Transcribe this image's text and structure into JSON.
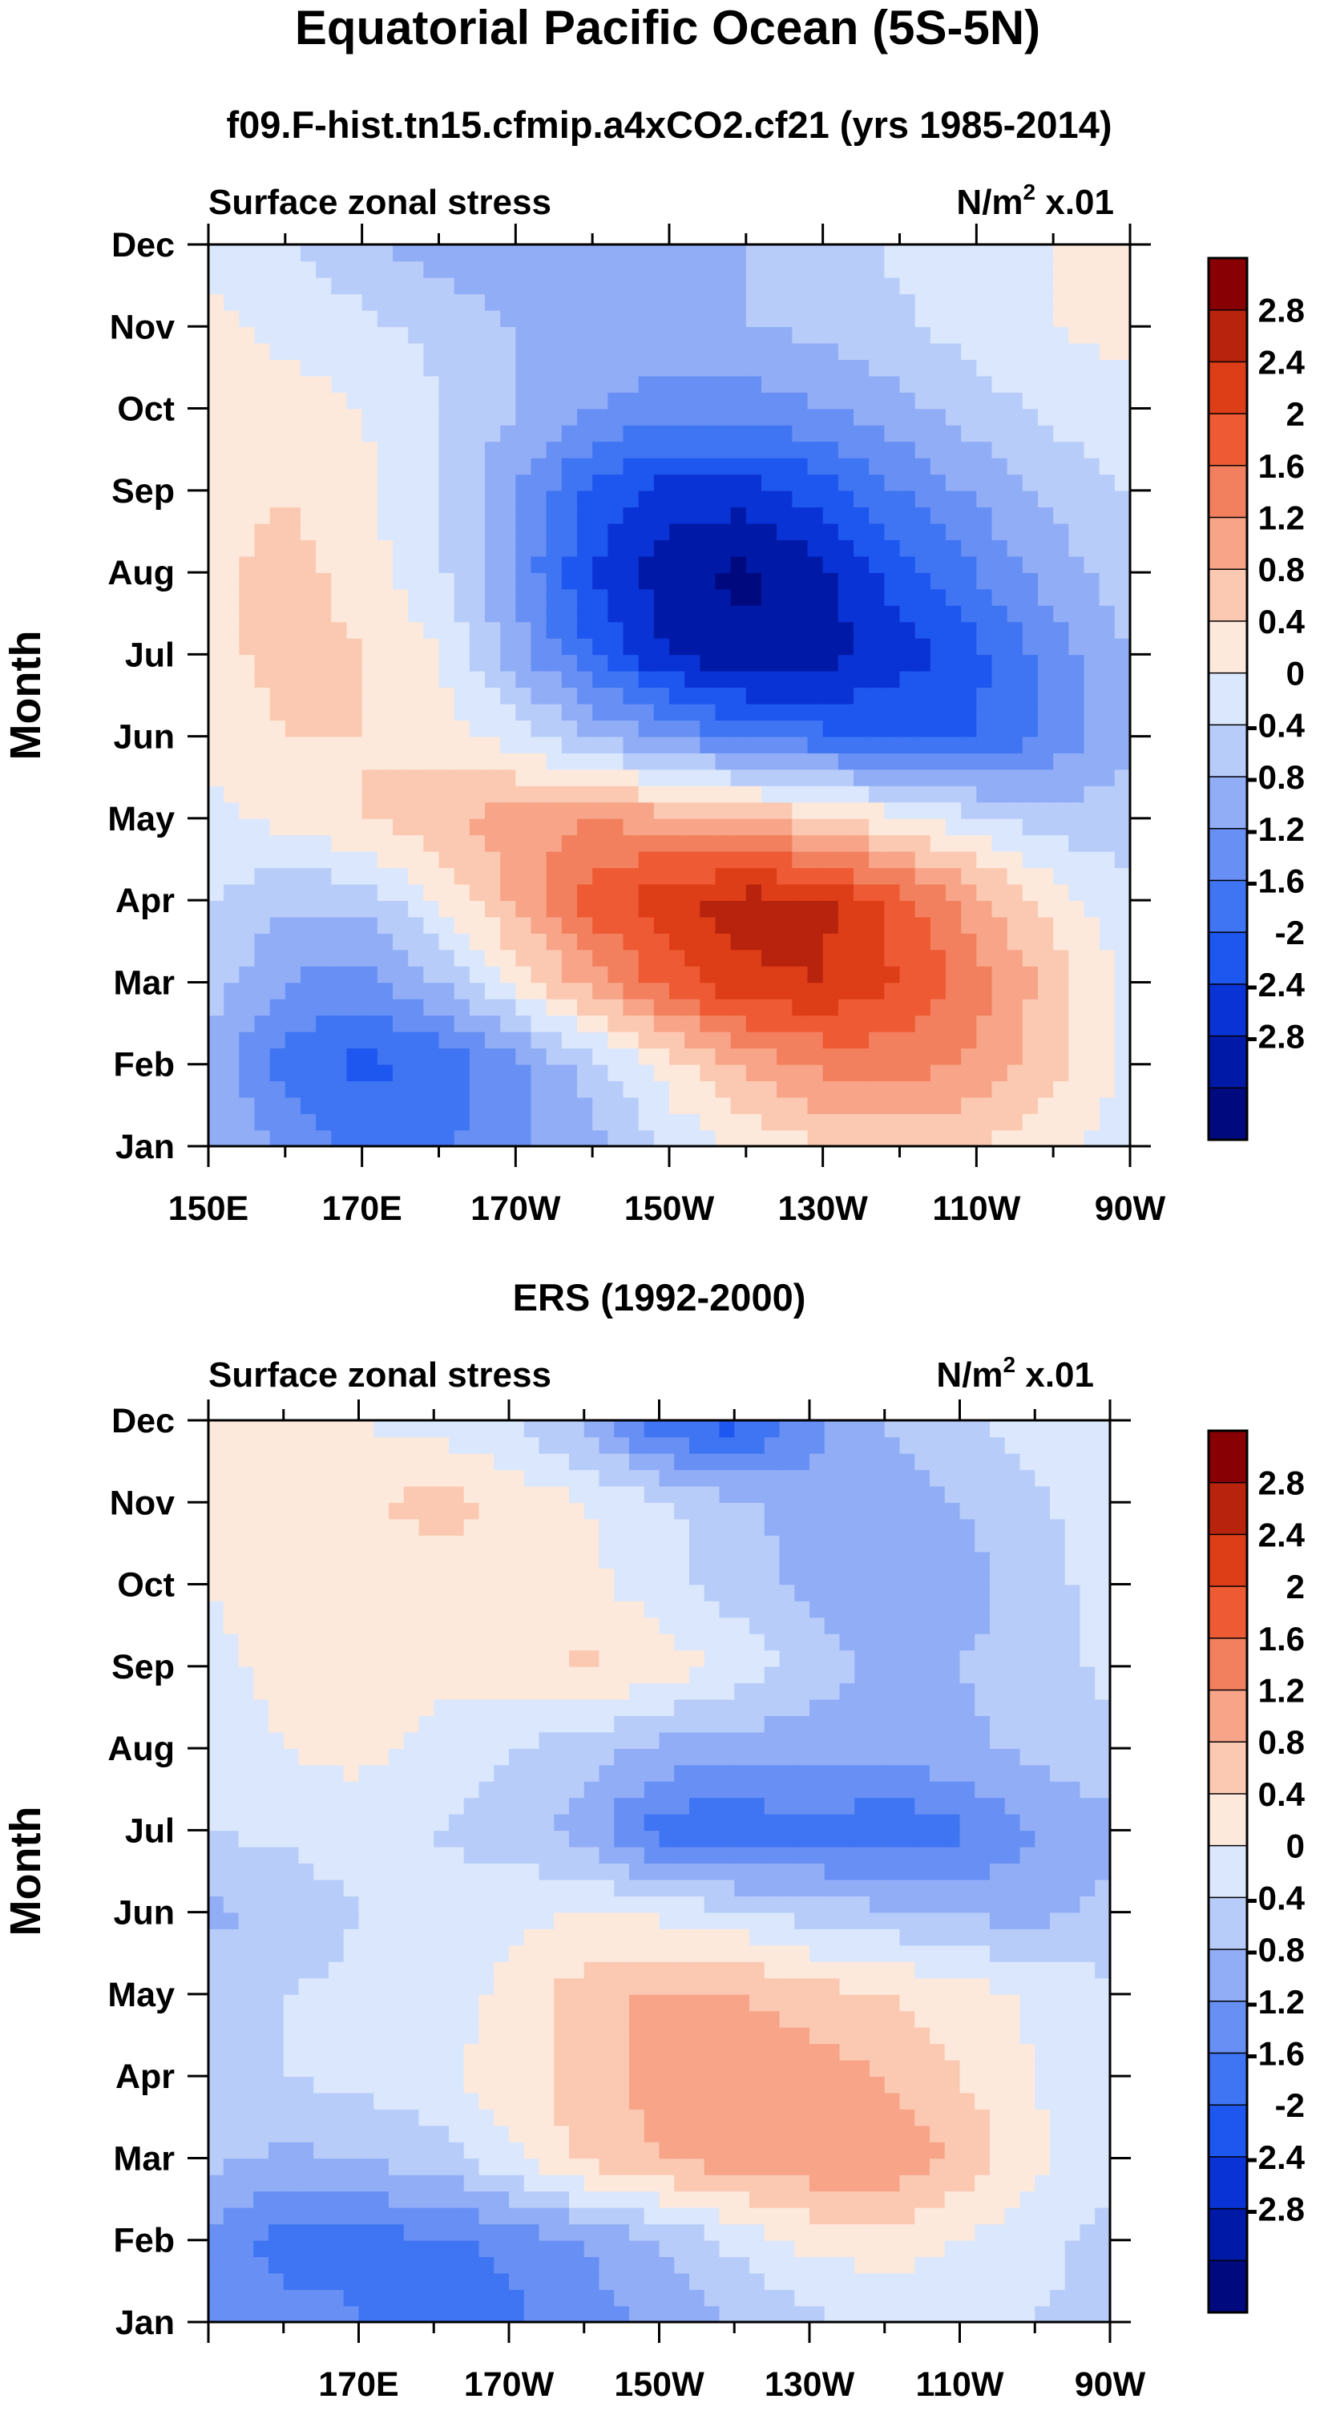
{
  "title": "Equatorial Pacific Ocean (5S-5N)",
  "colors": {
    "levels": [
      "#000a7e",
      "#001aa7",
      "#0a33d6",
      "#1e56f0",
      "#3f74f2",
      "#678ff4",
      "#91adf6",
      "#b8ccf9",
      "#daE7fc",
      "#fde9dc",
      "#fbc9b2",
      "#f7a488",
      "#f2805e",
      "#ee5a33",
      "#dd3d17",
      "#b8230d",
      "#880004"
    ]
  },
  "chart_data": [
    {
      "type": "heatmap",
      "panel_title": "f09.F-hist.tn15.cfmip.a4xCO2.cf21 (yrs 1985-2014)",
      "left_label": "Surface zonal stress",
      "right_label_base": "N/m",
      "right_label_sup": "2",
      "right_label_suffix": " x.01",
      "ylabel": "Month",
      "months": [
        "Jan",
        "Feb",
        "Mar",
        "Apr",
        "May",
        "Jun",
        "Jul",
        "Aug",
        "Sep",
        "Oct",
        "Nov",
        "Dec"
      ],
      "xtick_labels": [
        "150E",
        "170E",
        "170W",
        "150W",
        "130W",
        "110W",
        "90W"
      ],
      "xlim": [
        150,
        270
      ],
      "colorbar_labels": [
        "2.8",
        "2.4",
        "2",
        "1.6",
        "1.2",
        "0.8",
        "0.4",
        "0",
        "-0.4",
        "-0.8",
        "-1.2",
        "-1.6",
        "-2",
        "-2.4",
        "-2.8"
      ],
      "longitudes": [
        150,
        160,
        170,
        180,
        190,
        200,
        210,
        220,
        230,
        240,
        250,
        260,
        270
      ],
      "values": [
        [
          -0.4,
          -0.9,
          -1.3,
          -1.3,
          -0.9,
          -0.5,
          0.1,
          0.5,
          0.8,
          0.9,
          0.8,
          0.5,
          0.2
        ],
        [
          -0.5,
          -1.4,
          -1.7,
          -1.5,
          -0.9,
          -0.2,
          0.6,
          1.3,
          1.7,
          1.8,
          1.5,
          0.9,
          0.3
        ],
        [
          -0.2,
          -0.8,
          -1.0,
          -0.4,
          0.5,
          1.4,
          2.2,
          2.7,
          2.8,
          2.4,
          1.8,
          1.0,
          0.3
        ],
        [
          0.0,
          -0.3,
          -0.3,
          0.4,
          1.3,
          2.2,
          2.7,
          3.0,
          2.9,
          2.2,
          1.4,
          0.6,
          0.1
        ],
        [
          0.3,
          0.5,
          0.8,
          1.1,
          1.4,
          1.6,
          1.4,
          1.2,
          0.9,
          0.5,
          0.1,
          -0.2,
          -0.2
        ],
        [
          0.5,
          0.8,
          0.8,
          0.6,
          0.2,
          -0.4,
          -0.9,
          -1.3,
          -1.5,
          -1.6,
          -1.6,
          -1.1,
          -0.5
        ],
        [
          0.6,
          1.0,
          0.8,
          0.4,
          -0.6,
          -1.6,
          -2.4,
          -2.7,
          -2.6,
          -2.2,
          -1.7,
          -1.0,
          -0.4
        ],
        [
          0.7,
          1.0,
          0.6,
          0.1,
          -0.9,
          -2.0,
          -2.7,
          -2.9,
          -2.5,
          -1.8,
          -1.2,
          -0.6,
          -0.2
        ],
        [
          0.5,
          0.8,
          0.5,
          0.0,
          -0.8,
          -1.7,
          -2.2,
          -2.2,
          -1.8,
          -1.2,
          -0.7,
          -0.3,
          0.0
        ],
        [
          0.4,
          0.6,
          0.4,
          0.0,
          -0.4,
          -0.8,
          -1.0,
          -1.0,
          -0.8,
          -0.5,
          -0.2,
          0.1,
          0.3
        ],
        [
          0.5,
          0.3,
          0.1,
          -0.1,
          -0.4,
          -0.5,
          -0.5,
          -0.4,
          -0.3,
          -0.1,
          0.2,
          0.4,
          0.5
        ],
        [
          0.3,
          0.0,
          -0.3,
          -0.6,
          -0.8,
          -0.7,
          -0.5,
          -0.4,
          -0.2,
          0.1,
          0.3,
          0.4,
          0.5
        ]
      ]
    },
    {
      "type": "heatmap",
      "panel_title": "ERS (1992-2000)",
      "left_label": "Surface zonal stress",
      "right_label_base": "N/m",
      "right_label_sup": "2",
      "right_label_suffix": " x.01",
      "ylabel": "Month",
      "months": [
        "Jan",
        "Feb",
        "Mar",
        "Apr",
        "May",
        "Jun",
        "Jul",
        "Aug",
        "Sep",
        "Oct",
        "Nov",
        "Dec"
      ],
      "xtick_labels": [
        "170E",
        "170W",
        "150W",
        "130W",
        "110W",
        "90W"
      ],
      "xlim": [
        150,
        270
      ],
      "colorbar_labels": [
        "2.8",
        "2.4",
        "2",
        "1.6",
        "1.2",
        "0.8",
        "0.4",
        "0",
        "-0.4",
        "-0.8",
        "-1.2",
        "-1.6",
        "-2",
        "-2.4",
        "-2.8"
      ],
      "longitudes": [
        150,
        160,
        170,
        180,
        190,
        200,
        210,
        220,
        230,
        240,
        250,
        260,
        270
      ],
      "values": [
        [
          -0.8,
          -1.0,
          -1.2,
          -1.3,
          -1.3,
          -1.0,
          -0.7,
          -0.4,
          -0.1,
          0.1,
          0.2,
          0.0,
          -0.1
        ],
        [
          -0.9,
          -1.4,
          -1.3,
          -1.3,
          -1.1,
          -0.8,
          -0.4,
          0.1,
          0.5,
          0.6,
          0.4,
          0.1,
          -0.1
        ],
        [
          -0.3,
          -0.5,
          -0.4,
          -0.2,
          0.3,
          0.9,
          1.2,
          1.4,
          1.5,
          1.6,
          1.1,
          0.5,
          0.1
        ],
        [
          0.0,
          0.0,
          0.1,
          0.3,
          0.6,
          1.0,
          1.4,
          1.6,
          1.4,
          1.2,
          0.8,
          0.4,
          0.1
        ],
        [
          -0.2,
          0.0,
          0.1,
          0.2,
          0.5,
          1.0,
          1.3,
          1.2,
          1.0,
          0.8,
          0.6,
          0.3,
          0.1
        ],
        [
          -0.5,
          -0.3,
          0.0,
          0.1,
          0.3,
          0.4,
          0.3,
          0.1,
          -0.2,
          -0.3,
          -0.5,
          -0.5,
          -0.3
        ],
        [
          0.0,
          0.1,
          0.2,
          0.0,
          -0.2,
          -0.6,
          -1.4,
          -1.6,
          -1.3,
          -1.6,
          -1.3,
          -0.8,
          -0.5
        ],
        [
          0.2,
          0.4,
          0.5,
          0.3,
          0.0,
          -0.2,
          -0.5,
          -0.6,
          -0.6,
          -0.6,
          -0.5,
          -0.3,
          -0.1
        ],
        [
          0.3,
          0.5,
          0.6,
          0.5,
          0.6,
          0.9,
          0.6,
          0.3,
          -0.2,
          -0.5,
          -0.4,
          -0.2,
          0.1
        ],
        [
          0.4,
          0.6,
          0.6,
          0.5,
          0.7,
          0.5,
          0.2,
          -0.2,
          -0.5,
          -0.7,
          -0.6,
          -0.2,
          0.2
        ],
        [
          0.5,
          0.6,
          0.7,
          1.0,
          0.7,
          0.4,
          0.1,
          -0.3,
          -0.6,
          -0.6,
          -0.4,
          -0.1,
          0.3
        ],
        [
          0.4,
          0.5,
          0.4,
          0.2,
          0.0,
          -0.5,
          -1.6,
          -1.8,
          -1.0,
          -0.4,
          -0.1,
          0.2,
          0.3
        ]
      ]
    }
  ]
}
